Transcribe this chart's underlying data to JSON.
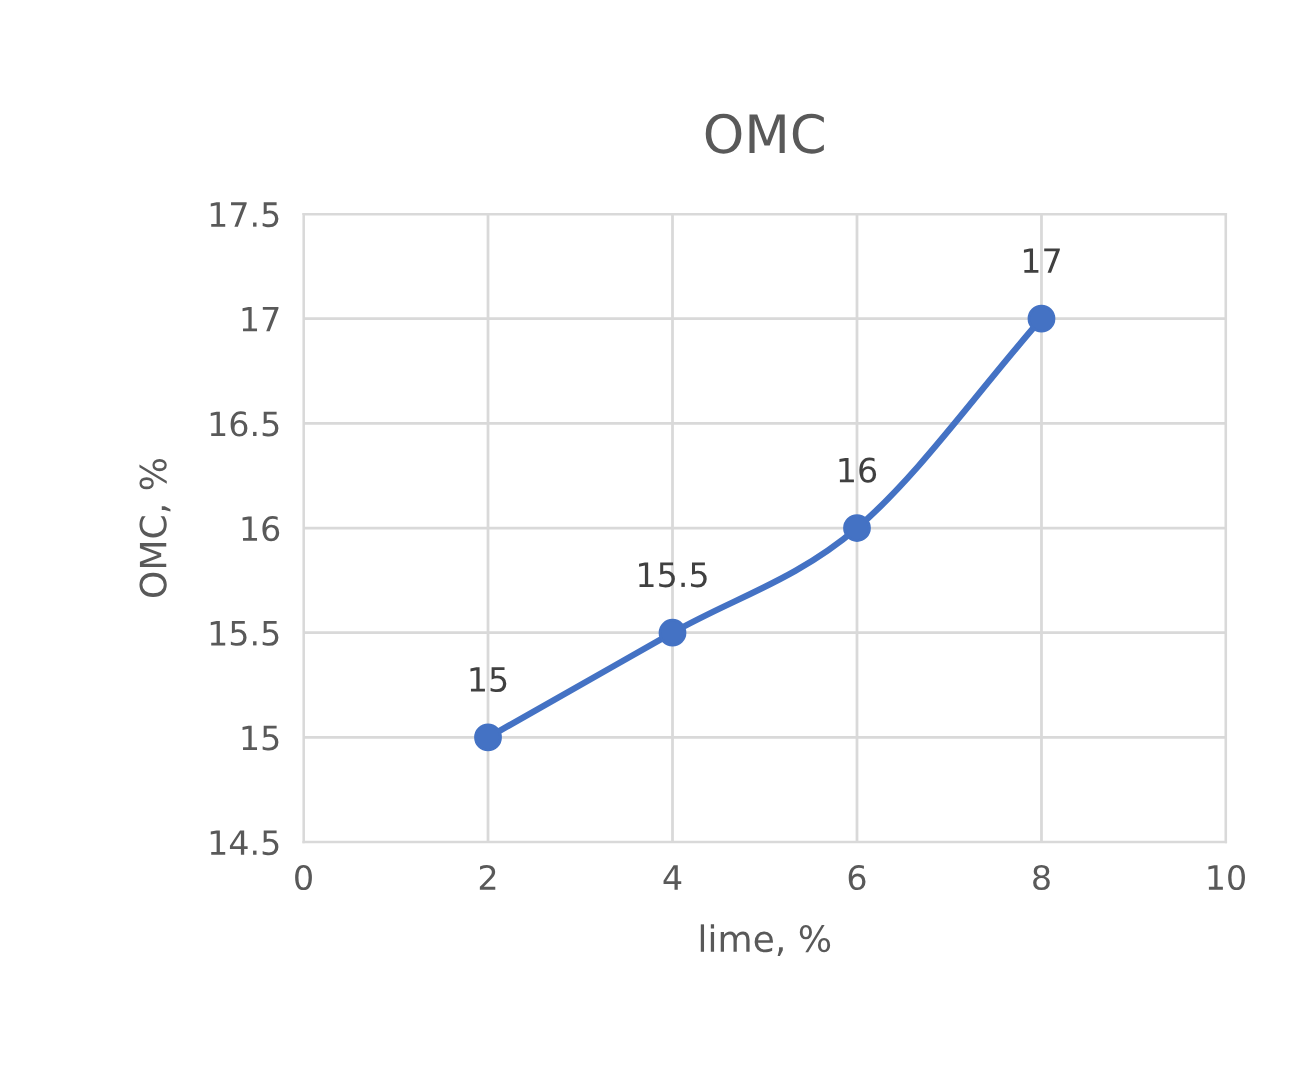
{
  "chart_data": {
    "type": "line",
    "title": "OMC",
    "xlabel": "lime, %",
    "ylabel": "OMC, %",
    "x": [
      2,
      4,
      6,
      8
    ],
    "series": [
      {
        "color": "#4472c4",
        "values": [
          15,
          15.5,
          16,
          17
        ]
      }
    ],
    "xlim": [
      0,
      10
    ],
    "xticks": [
      0,
      2,
      4,
      6,
      8,
      10
    ],
    "ylim": [
      14.5,
      17.5
    ],
    "yticks": [
      14.5,
      15,
      15.5,
      16,
      16.5,
      17,
      17.5
    ],
    "grid": true,
    "marker": "circle",
    "line_style": "solid",
    "data_labels": true
  }
}
